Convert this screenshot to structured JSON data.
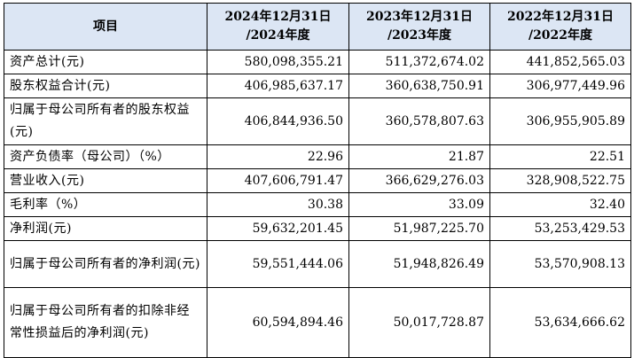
{
  "table": {
    "header": {
      "item": "项目",
      "col1": "2024年12月31日\n/2024年度",
      "col2": "2023年12月31日\n/2023年度",
      "col3": "2022年12月31日\n/2022年度"
    },
    "rows": [
      {
        "label": "资产总计(元)",
        "v1": "580,098,355.21",
        "v2": "511,372,674.02",
        "v3": "441,852,565.03"
      },
      {
        "label": "股东权益合计(元)",
        "v1": "406,985,637.17",
        "v2": "360,638,750.91",
        "v3": "306,977,449.96"
      },
      {
        "label": "归属于母公司所有者的股东权益(元)",
        "v1": "406,844,936.50",
        "v2": "360,578,807.63",
        "v3": "306,955,905.89"
      },
      {
        "label": "资产负债率（母公司）（%）",
        "v1": "22.96",
        "v2": "21.87",
        "v3": "22.51"
      },
      {
        "label": "营业收入(元)",
        "v1": "407,606,791.47",
        "v2": "366,629,276.03",
        "v3": "328,908,522.75"
      },
      {
        "label": "毛利率（%）",
        "v1": "30.38",
        "v2": "33.09",
        "v3": "32.40"
      },
      {
        "label": "净利润(元)",
        "v1": "59,632,201.45",
        "v2": "51,987,225.70",
        "v3": "53,253,429.53"
      },
      {
        "label": "归属于母公司所有者的净利润(元)",
        "v1": "59,551,444.06",
        "v2": "51,948,826.49",
        "v3": "53,570,908.13"
      },
      {
        "label": "归属于母公司所有者的扣除非经常性损益后的净利润(元)",
        "v1": "60,594,894.46",
        "v2": "50,017,728.87",
        "v3": "53,634,666.62"
      }
    ]
  }
}
